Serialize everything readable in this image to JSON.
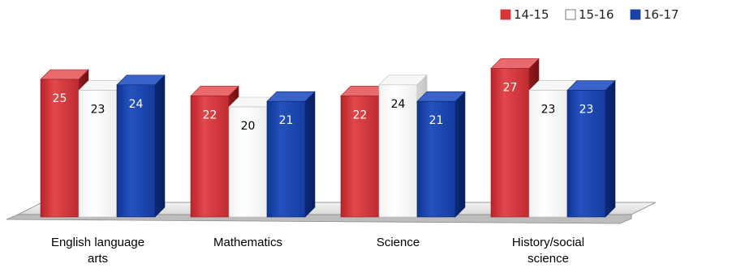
{
  "chart_data": {
    "type": "bar",
    "title": "",
    "xlabel": "",
    "ylabel": "",
    "categories": [
      [
        "English language",
        "arts"
      ],
      [
        "Mathematics"
      ],
      [
        "Science"
      ],
      [
        "History/social",
        "science"
      ]
    ],
    "series": [
      {
        "name": "14-15",
        "values": [
          25,
          22,
          22,
          27
        ],
        "color": "#d4363a"
      },
      {
        "name": "15-16",
        "values": [
          23,
          20,
          24,
          23
        ],
        "color": "#ffffff"
      },
      {
        "name": "16-17",
        "values": [
          24,
          21,
          21,
          23
        ],
        "color": "#1a43a8"
      }
    ],
    "ylim": [
      0,
      28
    ],
    "grid": false,
    "legend_position": "top-right",
    "value_labels": true
  }
}
